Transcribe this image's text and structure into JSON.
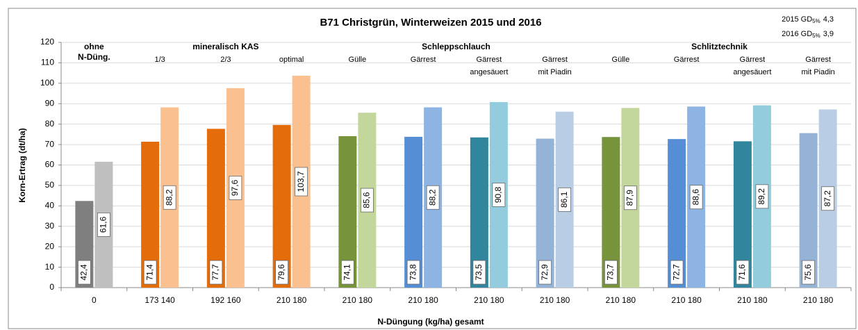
{
  "chart_data": {
    "type": "bar",
    "title": "B71 Christgrün, Winterweizen 2015 und 2016",
    "annotations": [
      {
        "prefix": "2015 GD",
        "sub": "5%",
        "suffix": "4,3"
      },
      {
        "prefix": "2016 GD",
        "sub": "5%",
        "suffix": "3,9"
      }
    ],
    "y_label": "Korn-Ertrag (dt/ha)",
    "x_label": "N-Düngung (kg/ha) gesamt",
    "categories": [
      "0",
      "173 140",
      "192 160",
      "210 180",
      "210 180",
      "210 180",
      "210 180",
      "210 180",
      "210 180",
      "210 180",
      "210 180",
      "210 180"
    ],
    "groups": [
      {
        "label": [
          "ohne",
          "N-Düng."
        ],
        "size": 1
      },
      {
        "label": [
          "mineralisch KAS"
        ],
        "size": 3
      },
      {
        "label": [
          "Schleppschlauch"
        ],
        "size": 4
      },
      {
        "label": [
          "Schlitztechnik"
        ],
        "size": 4
      }
    ],
    "sublabels": [
      null,
      [
        "1/3"
      ],
      [
        "2/3"
      ],
      [
        "optimal"
      ],
      [
        "Gülle"
      ],
      [
        "Gärrest"
      ],
      [
        "Gärrest",
        "angesäuert"
      ],
      [
        "Gärrest",
        "mit Piadin"
      ],
      [
        "Gülle"
      ],
      [
        "Gärrest"
      ],
      [
        "Gärrest",
        "angesäuert"
      ],
      [
        "Gärrest",
        "mit Piadin"
      ]
    ],
    "series": [
      {
        "colors": [
          "#7f7f7f",
          "#e46c0a",
          "#e46c0a",
          "#e46c0a",
          "#77933c",
          "#558ed5",
          "#31859c",
          "#95b3d7",
          "#77933c",
          "#558ed5",
          "#31859c",
          "#95b3d7"
        ],
        "values": [
          42.4,
          71.4,
          77.7,
          79.6,
          74.1,
          73.8,
          73.5,
          72.9,
          73.7,
          72.7,
          71.6,
          75.6
        ],
        "value_labels": [
          "42,4",
          "71,4",
          "77,7",
          "79,6",
          "74,1",
          "73,8",
          "73,5",
          "72,9",
          "73,7",
          "72,7",
          "71,6",
          "75,6"
        ]
      },
      {
        "colors": [
          "#bfbfbf",
          "#fac090",
          "#fac090",
          "#fac090",
          "#c3d69b",
          "#8eb4e3",
          "#93cddd",
          "#b9cde5",
          "#c3d69b",
          "#8eb4e3",
          "#93cddd",
          "#b9cde5"
        ],
        "values": [
          61.6,
          88.2,
          97.6,
          103.7,
          85.6,
          88.2,
          90.8,
          86.1,
          87.9,
          88.6,
          89.2,
          87.2
        ],
        "value_labels": [
          "61,6",
          "88,2",
          "97,6",
          "103,7",
          "85,6",
          "88,2",
          "90,8",
          "86,1",
          "87,9",
          "88,6",
          "89,2",
          "87,2"
        ]
      }
    ],
    "ylim": [
      0,
      120
    ],
    "yticks": [
      0,
      10,
      20,
      30,
      40,
      50,
      60,
      70,
      80,
      90,
      100,
      110,
      120
    ],
    "grid": true
  }
}
